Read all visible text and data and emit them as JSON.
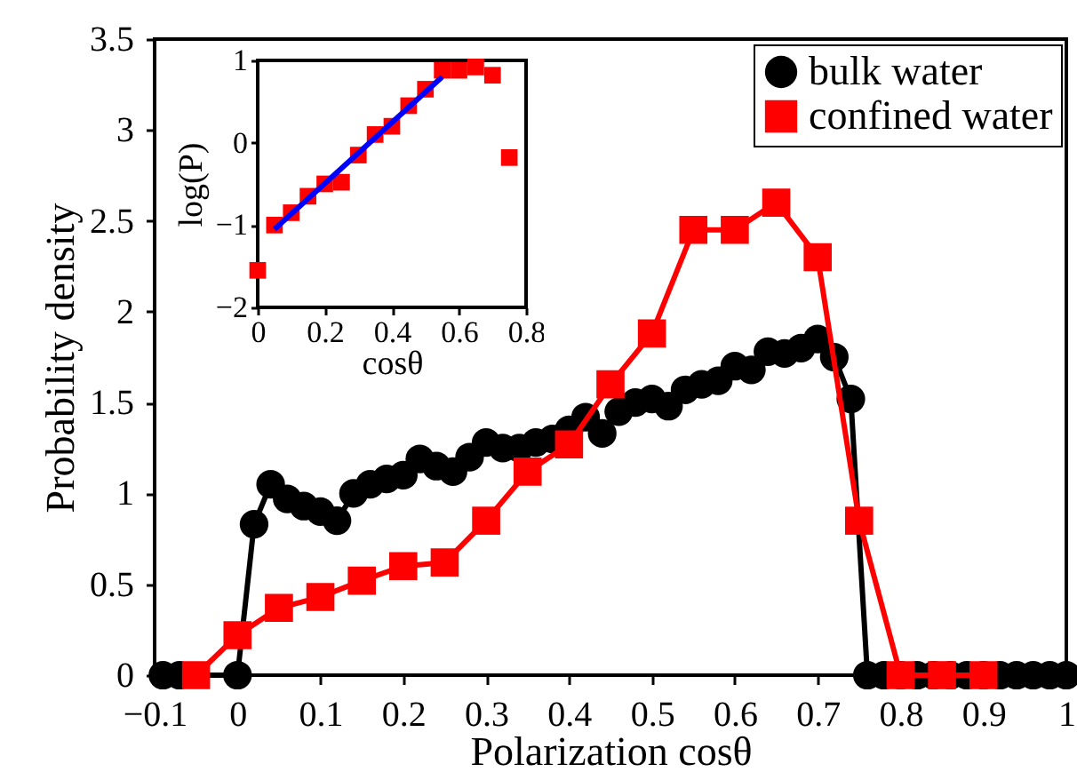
{
  "chart_data": [
    {
      "type": "line",
      "xlabel": "Polarization cosθ",
      "ylabel": "Probability density",
      "xlim": [
        -0.1,
        1
      ],
      "ylim": [
        0,
        3.5
      ],
      "xticks": [
        -0.1,
        0,
        0.1,
        0.2,
        0.3,
        0.4,
        0.5,
        0.6,
        0.7,
        0.8,
        0.9,
        1
      ],
      "yticks": [
        0,
        0.5,
        1,
        1.5,
        2,
        2.5,
        3,
        3.5
      ],
      "legend": "top right",
      "grid": false,
      "series": [
        {
          "name": "bulk water",
          "color": "#000000",
          "marker": "circle",
          "x": [
            -0.09,
            -0.07,
            0,
            0.02,
            0.04,
            0.06,
            0.08,
            0.1,
            0.12,
            0.14,
            0.16,
            0.18,
            0.2,
            0.22,
            0.24,
            0.26,
            0.28,
            0.3,
            0.32,
            0.34,
            0.36,
            0.38,
            0.4,
            0.42,
            0.44,
            0.46,
            0.48,
            0.5,
            0.52,
            0.54,
            0.56,
            0.58,
            0.6,
            0.62,
            0.64,
            0.66,
            0.68,
            0.7,
            0.72,
            0.74,
            0.76,
            0.78,
            0.8,
            0.82,
            0.84,
            0.86,
            0.88,
            0.9,
            0.92,
            0.94,
            0.96,
            0.98,
            1
          ],
          "values": [
            0,
            0,
            0,
            0.83,
            1.05,
            0.97,
            0.93,
            0.9,
            0.85,
            1.0,
            1.05,
            1.08,
            1.1,
            1.19,
            1.15,
            1.12,
            1.2,
            1.28,
            1.25,
            1.25,
            1.28,
            1.3,
            1.35,
            1.42,
            1.33,
            1.45,
            1.5,
            1.52,
            1.48,
            1.57,
            1.6,
            1.62,
            1.7,
            1.68,
            1.78,
            1.77,
            1.8,
            1.85,
            1.75,
            1.52,
            0,
            0,
            0,
            0,
            0,
            0,
            0,
            0,
            0,
            0,
            0,
            0,
            0
          ]
        },
        {
          "name": "confined water",
          "color": "#ff0000",
          "marker": "square",
          "x": [
            -0.05,
            0,
            0.05,
            0.1,
            0.15,
            0.2,
            0.25,
            0.3,
            0.35,
            0.4,
            0.45,
            0.5,
            0.55,
            0.6,
            0.65,
            0.7,
            0.75,
            0.8,
            0.85,
            0.9
          ],
          "values": [
            0,
            0.22,
            0.37,
            0.43,
            0.52,
            0.6,
            0.62,
            0.85,
            1.12,
            1.27,
            1.6,
            1.88,
            2.45,
            2.45,
            2.6,
            2.3,
            0.85,
            0,
            0,
            0
          ]
        }
      ]
    },
    {
      "type": "scatter",
      "xlabel": "cosθ",
      "ylabel": "log(P)",
      "xlim": [
        0,
        0.8
      ],
      "ylim": [
        -2,
        1
      ],
      "xticks": [
        0,
        0.2,
        0.4,
        0.6,
        0.8
      ],
      "yticks": [
        -2,
        -1,
        0,
        1
      ],
      "grid": false,
      "series": [
        {
          "color": "#ff0000",
          "marker": "square",
          "x": [
            0,
            0.05,
            0.1,
            0.15,
            0.2,
            0.25,
            0.3,
            0.35,
            0.4,
            0.45,
            0.5,
            0.55,
            0.6,
            0.65,
            0.7,
            0.75
          ],
          "values": [
            -1.55,
            -1.0,
            -0.85,
            -0.65,
            -0.5,
            -0.48,
            -0.15,
            0.1,
            0.2,
            0.45,
            0.65,
            0.88,
            0.88,
            0.92,
            0.82,
            -0.18
          ]
        },
        {
          "type": "line",
          "color": "#0000ff",
          "marker": "none",
          "x": [
            0.05,
            0.55
          ],
          "values": [
            -1.05,
            0.8
          ]
        }
      ]
    }
  ]
}
